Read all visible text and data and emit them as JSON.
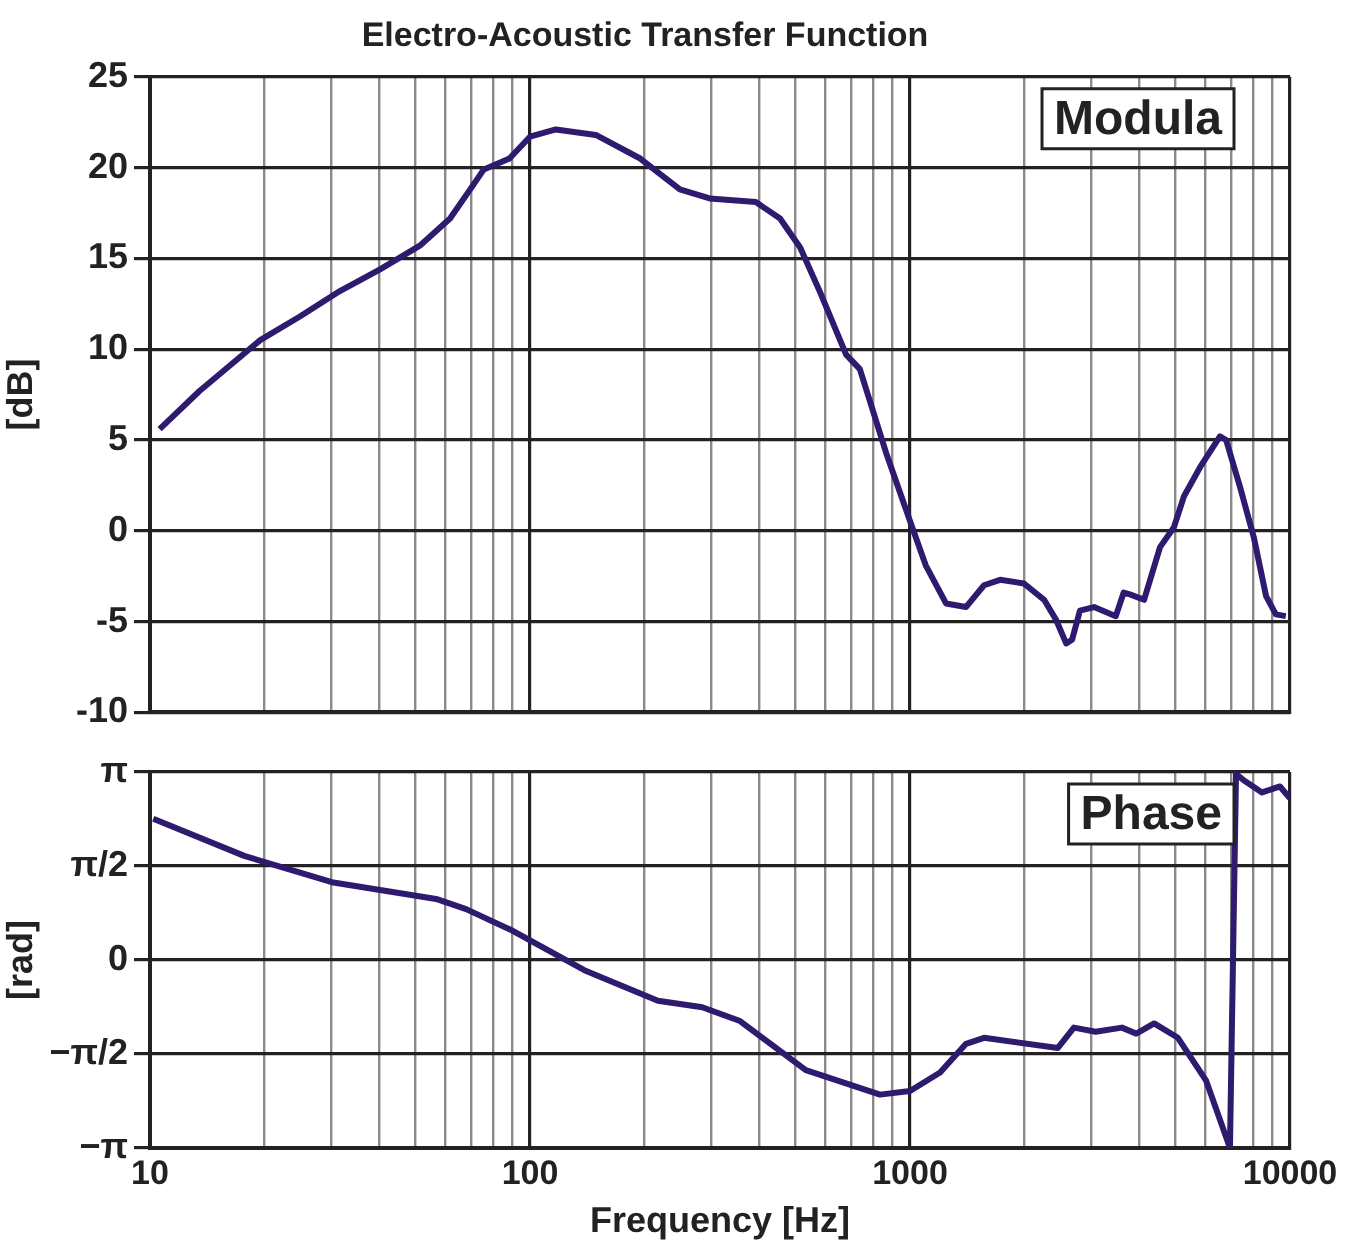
{
  "chart_data": [
    {
      "type": "line",
      "title": "Electro-Acoustic Transfer Function",
      "ylabel": "[dB]",
      "annotations": [
        "Modula"
      ],
      "log": "x",
      "grid": true,
      "legend": false,
      "tick_labels": "y",
      "xlim": [
        10,
        10000
      ],
      "ylim": [
        -10,
        25
      ],
      "xticks": [
        10,
        {
          "value": 20,
          "label": null
        },
        {
          "value": 30,
          "label": null
        },
        {
          "value": 40,
          "label": null
        },
        {
          "value": 50,
          "label": null
        },
        {
          "value": 60,
          "label": null
        },
        {
          "value": 70,
          "label": null
        },
        {
          "value": 80,
          "label": null
        },
        {
          "value": 90,
          "label": null
        },
        100,
        {
          "value": 200,
          "label": null
        },
        {
          "value": 300,
          "label": null
        },
        {
          "value": 400,
          "label": null
        },
        {
          "value": 500,
          "label": null
        },
        {
          "value": 600,
          "label": null
        },
        {
          "value": 700,
          "label": null
        },
        {
          "value": 800,
          "label": null
        },
        {
          "value": 900,
          "label": null
        },
        1000,
        {
          "value": 2000,
          "label": null
        },
        {
          "value": 3000,
          "label": null
        },
        {
          "value": 4000,
          "label": null
        },
        {
          "value": 5000,
          "label": null
        },
        {
          "value": 6000,
          "label": null
        },
        {
          "value": 7000,
          "label": null
        },
        {
          "value": 8000,
          "label": null
        },
        {
          "value": 9000,
          "label": null
        },
        10000
      ],
      "yticks": [
        -10,
        -5,
        0,
        5,
        10,
        15,
        20,
        25
      ],
      "series": [
        {
          "color": "#2e1a6e",
          "x": [
            10.6,
            13.5,
            19.5,
            24.8,
            31.6,
            40.3,
            51.3,
            61.6,
            69.6,
            75.6,
            88.3,
            100,
            117,
            149,
            195,
            248,
            297,
            393,
            455,
            514,
            581,
            679,
            738,
            865,
            1025,
            1100,
            1244,
            1404,
            1566,
            1726,
            1995,
            2254,
            2423,
            2576,
            2670,
            2800,
            3050,
            3480,
            3650,
            3790,
            4130,
            4550,
            4950,
            5260,
            5800,
            6540,
            6790,
            7390,
            8040,
            8650,
            9180,
            9750
          ],
          "values": [
            5.6,
            7.7,
            10.5,
            11.8,
            13.2,
            14.4,
            15.7,
            17.2,
            18.8,
            19.9,
            20.5,
            21.7,
            22.1,
            21.8,
            20.5,
            18.8,
            18.3,
            18.1,
            17.2,
            15.6,
            13.1,
            9.7,
            8.9,
            4.3,
            -0.1,
            -1.9,
            -4.0,
            -4.2,
            -3.0,
            -2.7,
            -2.9,
            -3.8,
            -4.9,
            -6.2,
            -6.0,
            -4.4,
            -4.2,
            -4.7,
            -3.4,
            -3.5,
            -3.8,
            -0.9,
            0.2,
            1.9,
            3.5,
            5.2,
            5.0,
            2.4,
            -0.4,
            -3.6,
            -4.6,
            -4.7
          ]
        }
      ]
    },
    {
      "type": "line",
      "xlabel": "Frequency [Hz]",
      "ylabel": "[rad]",
      "annotations": [
        "Phase"
      ],
      "log": "x",
      "grid": true,
      "legend": false,
      "xlim": [
        10,
        10000
      ],
      "ylim": [
        -3.1416,
        3.1416
      ],
      "xticks": [
        10,
        {
          "value": 20,
          "label": null
        },
        {
          "value": 30,
          "label": null
        },
        {
          "value": 40,
          "label": null
        },
        {
          "value": 50,
          "label": null
        },
        {
          "value": 60,
          "label": null
        },
        {
          "value": 70,
          "label": null
        },
        {
          "value": 80,
          "label": null
        },
        {
          "value": 90,
          "label": null
        },
        100,
        {
          "value": 200,
          "label": null
        },
        {
          "value": 300,
          "label": null
        },
        {
          "value": 400,
          "label": null
        },
        {
          "value": 500,
          "label": null
        },
        {
          "value": 600,
          "label": null
        },
        {
          "value": 700,
          "label": null
        },
        {
          "value": 800,
          "label": null
        },
        {
          "value": 900,
          "label": null
        },
        1000,
        {
          "value": 2000,
          "label": null
        },
        {
          "value": 3000,
          "label": null
        },
        {
          "value": 4000,
          "label": null
        },
        {
          "value": 5000,
          "label": null
        },
        {
          "value": 6000,
          "label": null
        },
        {
          "value": 7000,
          "label": null
        },
        {
          "value": 8000,
          "label": null
        },
        {
          "value": 9000,
          "label": null
        },
        10000
      ],
      "yticks": [
        {
          "value": -3.1416,
          "label": "−π"
        },
        {
          "value": -1.5708,
          "label": "−π/2"
        },
        0,
        {
          "value": 1.5708,
          "label": "π/2"
        },
        {
          "value": 3.1416,
          "label": "π"
        }
      ],
      "series": [
        {
          "color": "#2e1a6e",
          "x": [
            10.2,
            17.7,
            30.1,
            56.6,
            67.9,
            88.6,
            139,
            217,
            284,
            357,
            532,
            834,
            1000,
            1200,
            1404,
            1566,
            2450,
            2700,
            3080,
            3610,
            3940,
            4390,
            5070,
            6010,
            6950,
            7210,
            7570,
            8440,
            9410,
            10000
          ],
          "values": [
            2.36,
            1.74,
            1.3,
            1.02,
            0.85,
            0.51,
            -0.17,
            -0.68,
            -0.79,
            -1.02,
            -1.84,
            -2.25,
            -2.19,
            -1.88,
            -1.4,
            -1.3,
            -1.47,
            -1.13,
            -1.2,
            -1.13,
            -1.23,
            -1.06,
            -1.3,
            -2.01,
            -3.14,
            3.11,
            3.0,
            2.8,
            2.9,
            2.7
          ]
        }
      ]
    }
  ]
}
